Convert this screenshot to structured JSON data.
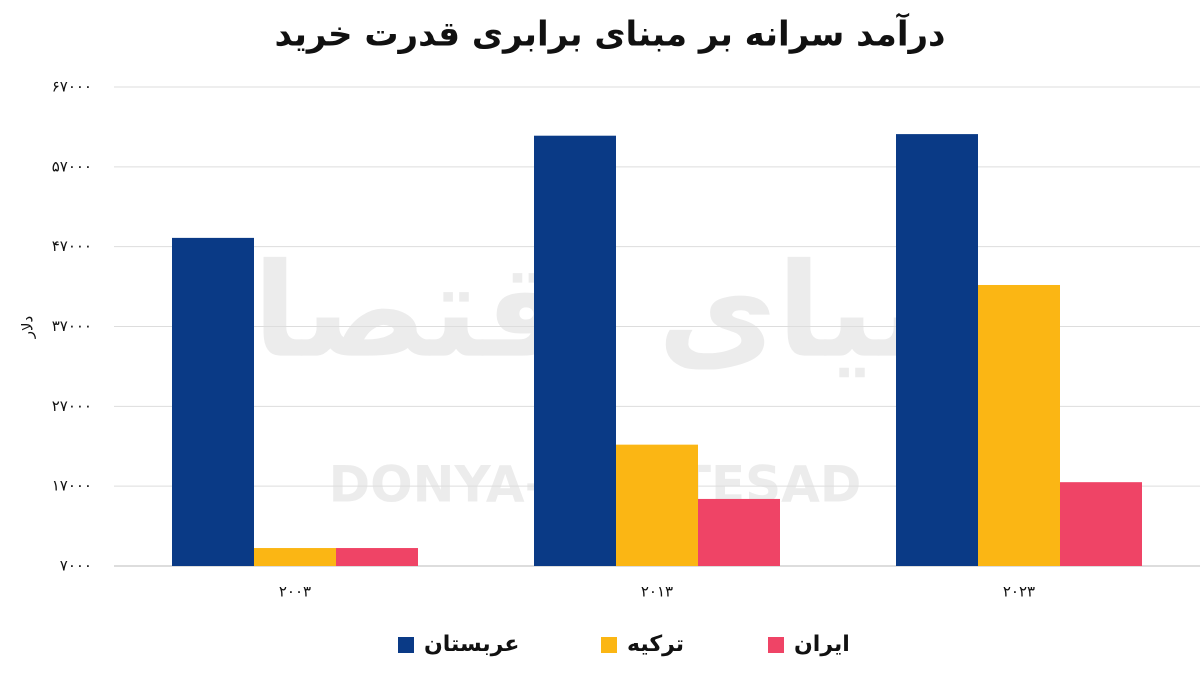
{
  "chart_data": {
    "type": "bar",
    "title": "درآمد سرانه بر مبنای برابری قدرت خرید",
    "y_label": "دلار",
    "watermark": [
      "دنیای اقتصاد",
      "DONYA-E-EQTESAD"
    ],
    "categories": [
      "۲۰۰۳",
      "۲۰۱۳",
      "۲۰۲۳"
    ],
    "series": [
      {
        "name": "عربستان",
        "color": "#0a3a86",
        "values": [
          48100,
          60900,
          61100
        ]
      },
      {
        "name": "ترکیه",
        "color": "#fbb614",
        "values": [
          9250,
          22200,
          42200
        ]
      },
      {
        "name": "ایران",
        "color": "#ef4466",
        "values": [
          9250,
          15400,
          17500
        ]
      }
    ],
    "ylim": [
      7000,
      67000
    ],
    "yticks": [
      {
        "value": 7000,
        "label": "۷۰۰۰"
      },
      {
        "value": 17000,
        "label": "۱۷۰۰۰"
      },
      {
        "value": 27000,
        "label": "۲۷۰۰۰"
      },
      {
        "value": 37000,
        "label": "۳۷۰۰۰"
      },
      {
        "value": 47000,
        "label": "۴۷۰۰۰"
      },
      {
        "value": 57000,
        "label": "۵۷۰۰۰"
      },
      {
        "value": 67000,
        "label": "۶۷۰۰۰"
      }
    ],
    "grid": true
  }
}
